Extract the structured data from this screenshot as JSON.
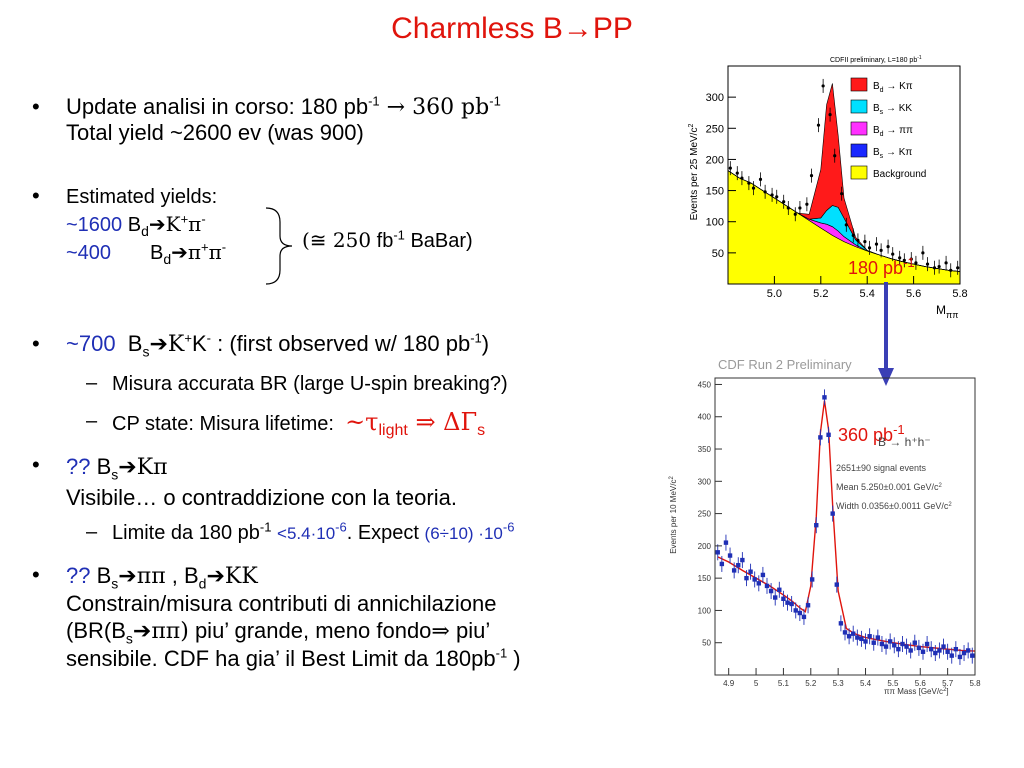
{
  "slide": {
    "title": "Charmless B→PP",
    "b1": {
      "l1a": "Update analisi in corso: 180 pb",
      "exp": "-1",
      "l1b": " → 360 pb",
      "exp2": "-1",
      "l2": "Total yield ~2600 ev (was 900)"
    },
    "b2": {
      "head": "Estimated yields:",
      "y1": "~1600",
      "y1p": "B",
      "y1s": "d",
      "y1r": "➔K",
      "y1sup": "+",
      "y1pi": "π",
      "y1m": "-",
      "y2": "~400",
      "y2p": "B",
      "y2s": "d",
      "y2r": "➔π",
      "y2sup": "+",
      "y2pi": "π",
      "y2m": "-",
      "babar_a": "(≅ 250",
      "babar_b": " fb",
      "babar_exp": "-1",
      "babar_c": " BaBar)"
    },
    "b3": {
      "a": "~700",
      "b": "B",
      "bs": "s",
      "c": "➔K",
      "csup": "+",
      "d": "K",
      "dsup": "-",
      "e": " : (first observed w/ 180 pb",
      "eexp": "-1",
      "f": ")",
      "d1": "Misura accurata BR (large U-spin breaking?)",
      "d2": "CP state: Misura lifetime:",
      "d2b": "~τ",
      "d2c": "light",
      "d2d": " ⇒ ΔΓ",
      "d2e": "s"
    },
    "b4": {
      "q": "??",
      "a": "B",
      "as": "s",
      "b": "➔Kπ",
      "l2": "Visibile… o contraddizione con la teoria.",
      "d1a": "Limite da 180 pb",
      "d1exp": "-1",
      "d1b": "<5.4·10",
      "d1bexp": "-6",
      "d1c": ". Expect",
      "d1d": "(6÷10) ·10",
      "d1dexp": "-6"
    },
    "b5": {
      "q": "??",
      "a": "B",
      "as": "s",
      "b": "➔ππ",
      "c": " , B",
      "cs": "d",
      "d": "➔KK",
      "l2": "Constrain/misura contributi di annichilazione",
      "l3a": "(BR(B",
      "l3s": "s",
      "l3b": "➔ππ)",
      "l3c": " piu’ grande, meno fondo",
      "l3d": "⇒",
      "l3e": " piu’",
      "l4": "sensibile. CDF ha gia’ il Best Limit da 180pb",
      "l4exp": "-1",
      "l4b": " )"
    },
    "bullet": "•",
    "dash": "–",
    "label180": "180 pb",
    "label180exp": "-1",
    "label360": "360 pb",
    "label360exp": "-1"
  },
  "chart_data": [
    {
      "type": "bar",
      "title": "CDFII preliminary, L=180 pb",
      "title_exp": "-1",
      "ylabel": "Events per 25 MeV/c",
      "ylabel_exp": "2",
      "xlabel": "M",
      "xlabel_sub": "ππ",
      "xlim": [
        4.8,
        5.8
      ],
      "ylim": [
        0,
        350
      ],
      "x_ticks": [
        "5.0",
        "5.2",
        "5.4",
        "5.6",
        "5.8"
      ],
      "y_ticks": [
        "50",
        "100",
        "150",
        "200",
        "250",
        "300"
      ],
      "legend_position": "top-right",
      "legend": [
        {
          "label": "B",
          "sub": "d",
          "rest": " → Kπ",
          "color": "#ff1a1a"
        },
        {
          "label": "B",
          "sub": "s",
          "rest": " → KK",
          "color": "#00e0ff"
        },
        {
          "label": "B",
          "sub": "d",
          "rest": " → ππ",
          "color": "#ff30ff"
        },
        {
          "label": "B",
          "sub": "s",
          "rest": " → Kπ",
          "color": "#1a28ff"
        },
        {
          "label": "Background",
          "sub": "",
          "rest": "",
          "color": "#ffff00"
        }
      ],
      "x": [
        4.8,
        4.85,
        4.9,
        4.95,
        5.0,
        5.05,
        5.1,
        5.15,
        5.2,
        5.225,
        5.25,
        5.275,
        5.3,
        5.35,
        5.4,
        5.45,
        5.5,
        5.55,
        5.6,
        5.65,
        5.7,
        5.75,
        5.8
      ],
      "series": [
        {
          "name": "Background",
          "values": [
            182,
            170,
            162,
            150,
            138,
            126,
            114,
            102,
            90,
            84,
            78,
            73,
            68,
            60,
            53,
            47,
            41,
            36,
            32,
            28,
            25,
            22,
            20
          ]
        },
        {
          "name": "B→ππ",
          "values": [
            0,
            0,
            0,
            0,
            0,
            0,
            0,
            2,
            8,
            12,
            14,
            12,
            8,
            3,
            0,
            0,
            0,
            0,
            0,
            0,
            0,
            0,
            0
          ]
        },
        {
          "name": "Bs→KK",
          "values": [
            0,
            0,
            0,
            0,
            0,
            0,
            0,
            0,
            8,
            22,
            34,
            38,
            30,
            8,
            1,
            0,
            0,
            0,
            0,
            0,
            0,
            0,
            0
          ]
        },
        {
          "name": "Bd→Kπ",
          "values": [
            0,
            0,
            0,
            0,
            0,
            0,
            0,
            8,
            78,
            170,
            196,
            115,
            32,
            4,
            0,
            0,
            0,
            0,
            0,
            0,
            0,
            0,
            0
          ]
        }
      ],
      "points_x": [
        4.81,
        4.84,
        4.86,
        4.89,
        4.91,
        4.94,
        4.96,
        4.99,
        5.01,
        5.04,
        5.06,
        5.09,
        5.11,
        5.14,
        5.16,
        5.19,
        5.21,
        5.24,
        5.26,
        5.29,
        5.31,
        5.34,
        5.36,
        5.39,
        5.41,
        5.44,
        5.46,
        5.49,
        5.51,
        5.54,
        5.56,
        5.59,
        5.61,
        5.64,
        5.66,
        5.69,
        5.71,
        5.74,
        5.76,
        5.79
      ],
      "points_y": [
        186,
        178,
        170,
        162,
        154,
        168,
        148,
        143,
        140,
        132,
        122,
        112,
        122,
        128,
        174,
        255,
        318,
        272,
        206,
        145,
        95,
        78,
        70,
        68,
        58,
        64,
        54,
        60,
        48,
        42,
        38,
        40,
        34,
        50,
        32,
        26,
        28,
        34,
        22,
        26
      ]
    },
    {
      "type": "scatter",
      "title": "CDF Run 2 Preliminary",
      "ylabel": "Events per 10 MeV/c",
      "ylabel_exp": "2",
      "xlabel": "ππ Mass [GeV/c",
      "xlabel_exp": "2",
      "xlabel_end": "]",
      "xlim": [
        4.85,
        5.8
      ],
      "ylim": [
        0,
        460
      ],
      "x_ticks": [
        "4.9",
        "5",
        "5.1",
        "5.2",
        "5.3",
        "5.4",
        "5.5",
        "5.6",
        "5.7",
        "5.8"
      ],
      "y_ticks": [
        "50",
        "100",
        "150",
        "200",
        "250",
        "300",
        "350",
        "400",
        "450"
      ],
      "annotations": {
        "decay": "B  →  h⁺h⁻",
        "events": "2651±90 signal events",
        "mean": "Mean 5.250±0.001 GeV/c",
        "mean_exp": "2",
        "width": "Width 0.0356±0.0011 GeV/c",
        "width_exp": "2"
      },
      "fit_x": [
        4.86,
        4.9,
        4.95,
        5.0,
        5.05,
        5.1,
        5.13,
        5.16,
        5.18,
        5.2,
        5.22,
        5.235,
        5.25,
        5.265,
        5.28,
        5.3,
        5.33,
        5.36,
        5.4,
        5.45,
        5.5,
        5.55,
        5.6,
        5.65,
        5.7,
        5.75,
        5.8
      ],
      "fit_y": [
        183,
        175,
        162,
        150,
        138,
        124,
        115,
        104,
        98,
        138,
        245,
        375,
        425,
        380,
        262,
        130,
        72,
        64,
        58,
        54,
        50,
        47,
        44,
        42,
        40,
        38,
        37
      ],
      "points_x": [
        4.86,
        4.875,
        4.89,
        4.905,
        4.92,
        4.935,
        4.95,
        4.965,
        4.98,
        4.995,
        5.01,
        5.025,
        5.04,
        5.055,
        5.07,
        5.085,
        5.1,
        5.115,
        5.13,
        5.145,
        5.16,
        5.175,
        5.19,
        5.205,
        5.22,
        5.235,
        5.25,
        5.265,
        5.28,
        5.295,
        5.31,
        5.325,
        5.34,
        5.355,
        5.37,
        5.385,
        5.4,
        5.415,
        5.43,
        5.445,
        5.46,
        5.475,
        5.49,
        5.505,
        5.52,
        5.535,
        5.55,
        5.565,
        5.58,
        5.595,
        5.61,
        5.625,
        5.64,
        5.655,
        5.67,
        5.685,
        5.7,
        5.715,
        5.73,
        5.745,
        5.76,
        5.775,
        5.79
      ],
      "points_y": [
        190,
        172,
        205,
        185,
        162,
        170,
        178,
        150,
        160,
        148,
        142,
        155,
        138,
        130,
        120,
        132,
        118,
        112,
        110,
        100,
        96,
        90,
        108,
        148,
        232,
        368,
        430,
        372,
        250,
        140,
        80,
        66,
        60,
        64,
        58,
        56,
        52,
        60,
        50,
        58,
        48,
        44,
        52,
        46,
        40,
        48,
        44,
        38,
        50,
        42,
        36,
        48,
        40,
        34,
        38,
        44,
        36,
        30,
        40,
        28,
        34,
        38,
        30
      ]
    }
  ]
}
